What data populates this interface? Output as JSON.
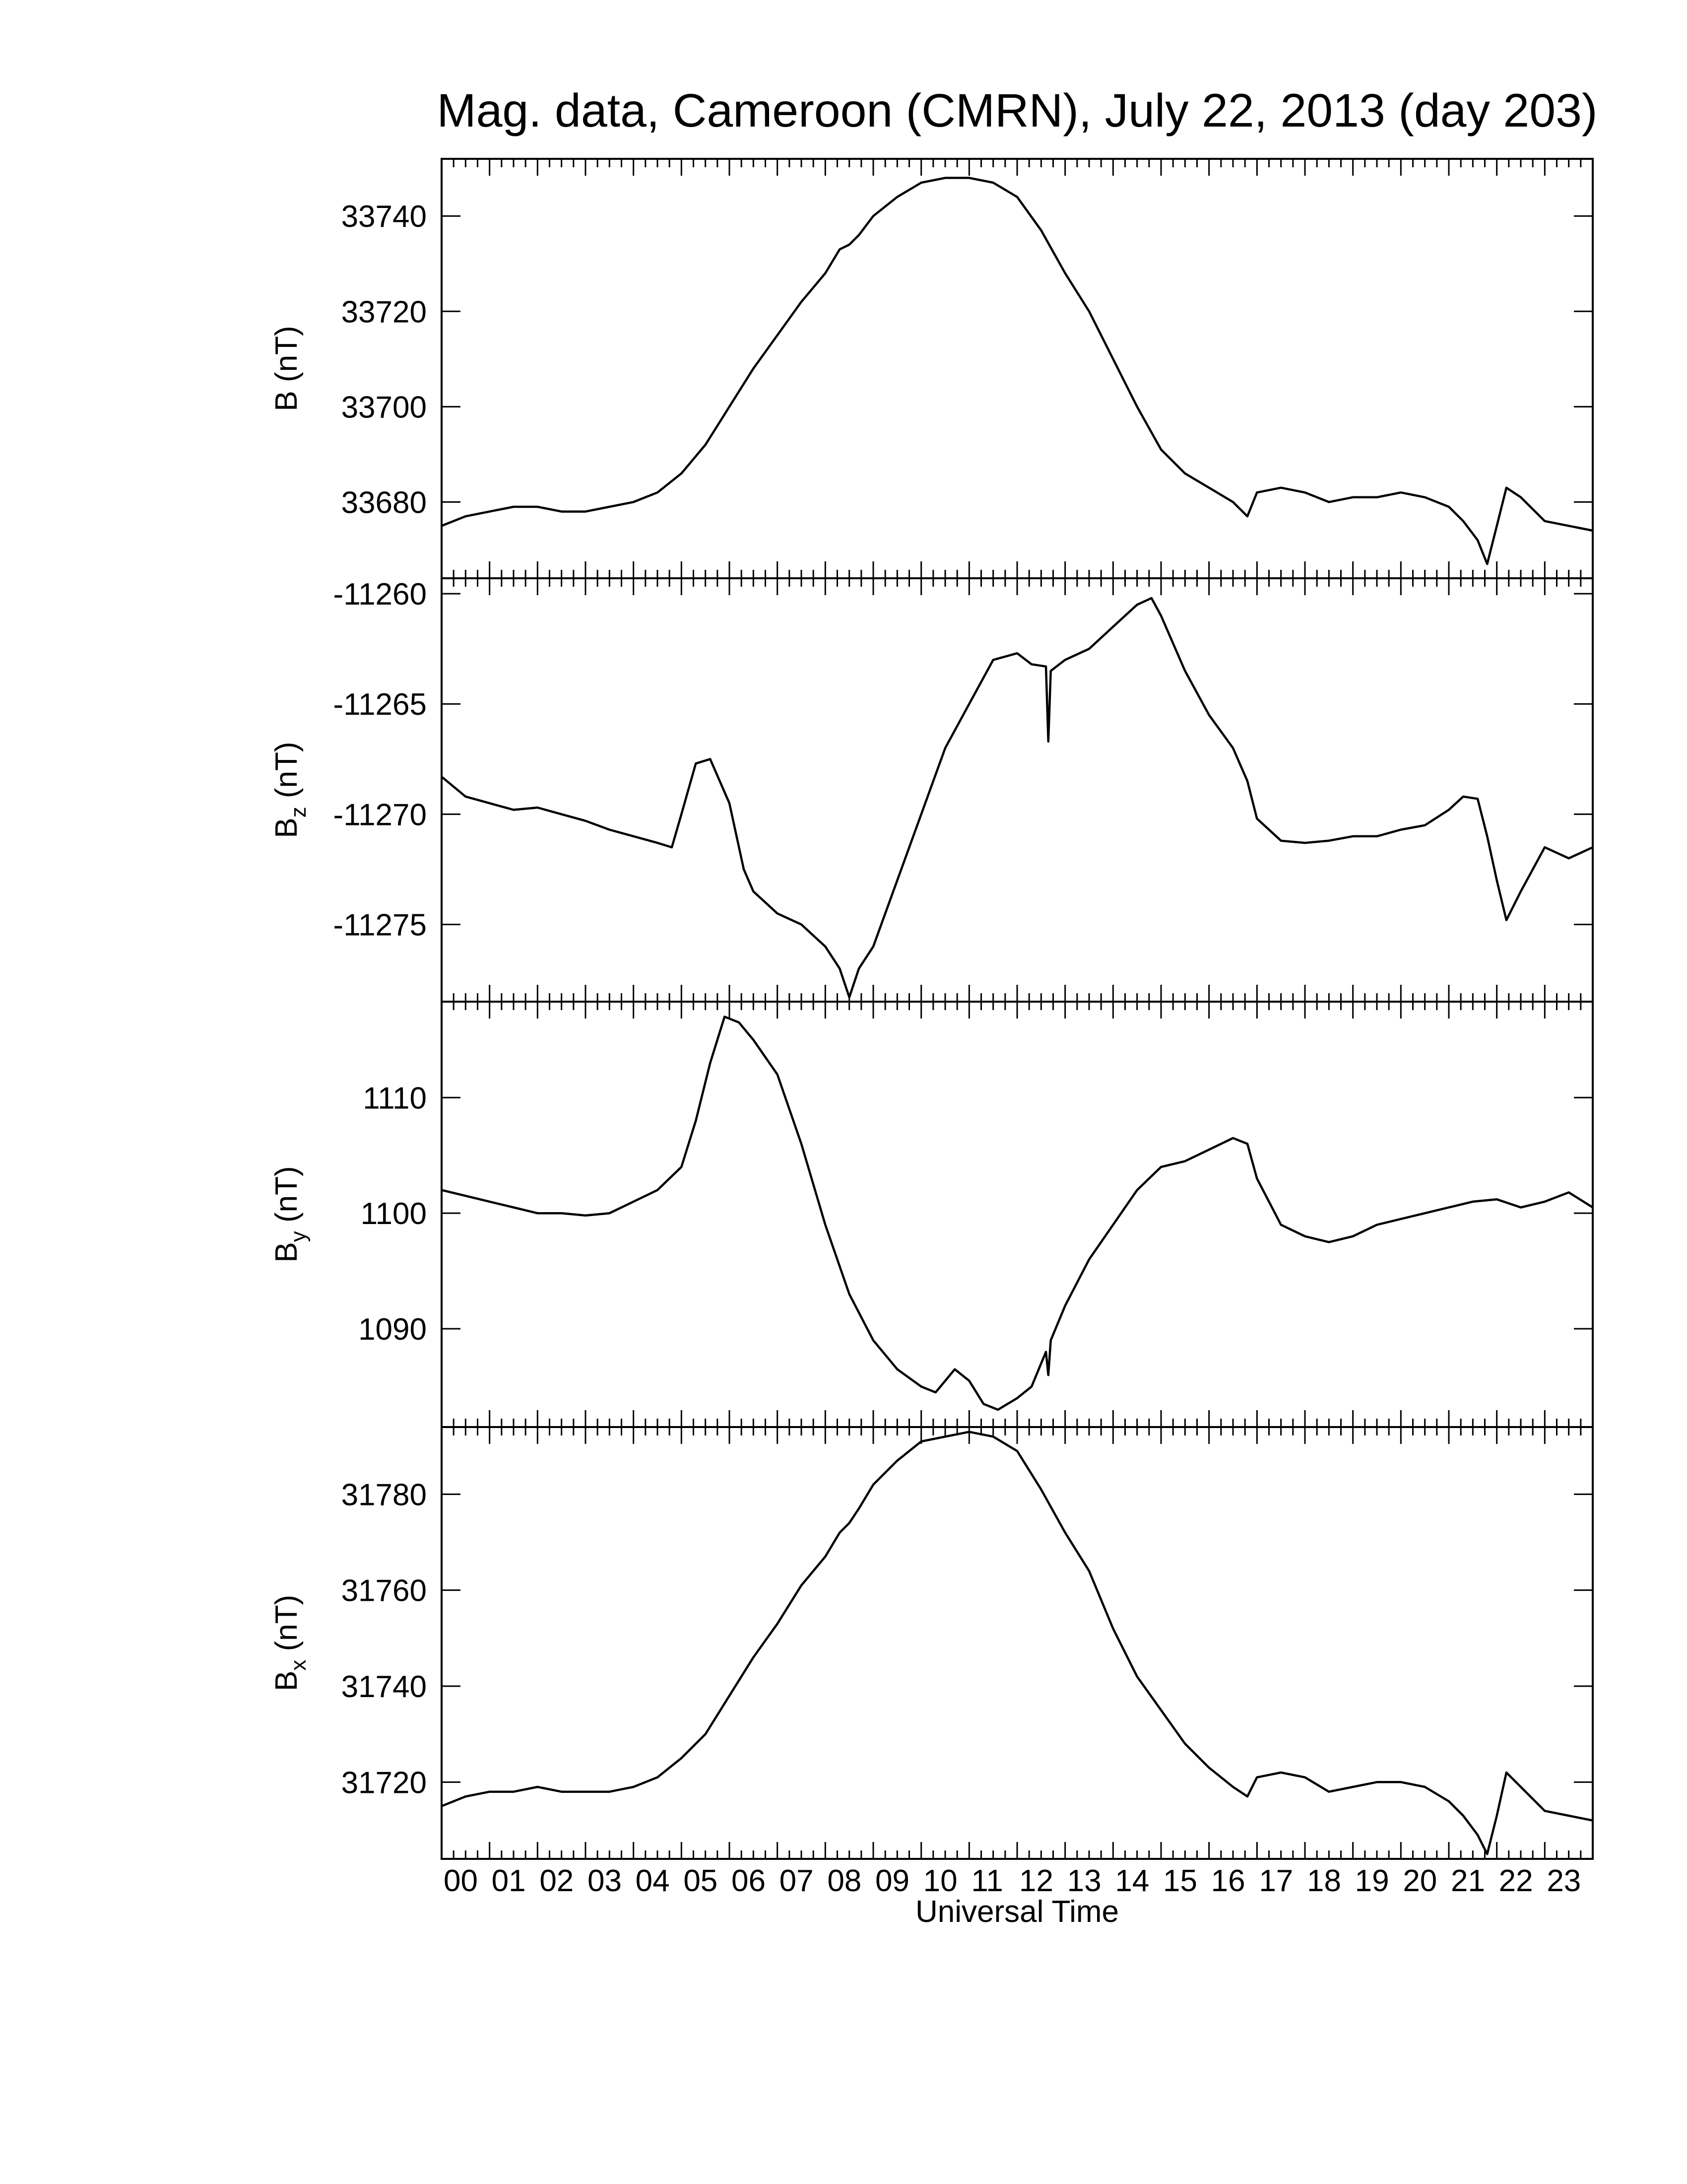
{
  "title": "Mag. data, Cameroon (CMRN), July 22, 2013 (day 203)",
  "x_axis": {
    "label": "Universal Time",
    "tick_labels": [
      "00",
      "01",
      "02",
      "03",
      "04",
      "05",
      "06",
      "07",
      "08",
      "09",
      "10",
      "11",
      "12",
      "13",
      "14",
      "15",
      "16",
      "17",
      "18",
      "19",
      "20",
      "21",
      "22",
      "23"
    ]
  },
  "chart_data": [
    {
      "type": "line",
      "ylabel": "B (nT)",
      "ylim": [
        33664,
        33752
      ],
      "yticks": [
        33680,
        33700,
        33720,
        33740
      ],
      "series": [
        {
          "x": [
            0,
            0.5,
            1,
            1.5,
            2,
            2.5,
            3,
            3.5,
            4,
            4.5,
            5,
            5.5,
            6,
            6.5,
            7,
            7.5,
            8,
            8.3,
            8.5,
            8.7,
            9,
            9.5,
            10,
            10.5,
            11,
            11.5,
            12,
            12.5,
            13,
            13.5,
            14,
            14.5,
            15,
            15.5,
            16,
            16.5,
            16.8,
            17,
            17.5,
            18,
            18.5,
            19,
            19.5,
            20,
            20.5,
            21,
            21.3,
            21.6,
            21.8,
            22,
            22.2,
            22.5,
            23,
            23.5,
            24
          ],
          "y": [
            33675,
            33677,
            33678,
            33679,
            33679,
            33678,
            33678,
            33679,
            33680,
            33682,
            33686,
            33692,
            33700,
            33708,
            33715,
            33722,
            33728,
            33733,
            33734,
            33736,
            33740,
            33744,
            33747,
            33748,
            33748,
            33747,
            33744,
            33737,
            33728,
            33720,
            33710,
            33700,
            33691,
            33686,
            33683,
            33680,
            33677,
            33682,
            33683,
            33682,
            33680,
            33681,
            33681,
            33682,
            33681,
            33679,
            33676,
            33672,
            33667,
            33675,
            33683,
            33681,
            33676,
            33675,
            33674
          ]
        }
      ]
    },
    {
      "type": "line",
      "ylabel": "Bz (nT)",
      "ylim": [
        -11278.5,
        -11259.3
      ],
      "yticks": [
        -11260,
        -11265,
        -11270,
        -11275
      ],
      "series": [
        {
          "x": [
            0,
            0.5,
            1,
            1.5,
            2,
            2.5,
            3,
            3.5,
            4,
            4.5,
            4.8,
            5,
            5.3,
            5.6,
            6,
            6.3,
            6.5,
            7,
            7.5,
            8,
            8.3,
            8.5,
            8.7,
            9,
            9.5,
            10,
            10.5,
            11,
            11.5,
            12,
            12.3,
            12.6,
            12.65,
            12.7,
            13,
            13.5,
            14,
            14.5,
            14.8,
            15,
            15.5,
            16,
            16.5,
            16.8,
            17,
            17.5,
            18,
            18.5,
            19,
            19.5,
            20,
            20.5,
            21,
            21.3,
            21.6,
            21.8,
            22,
            22.2,
            22.5,
            23,
            23.5,
            24
          ],
          "y": [
            -11268.3,
            -11269.2,
            -11269.5,
            -11269.8,
            -11269.7,
            -11270,
            -11270.3,
            -11270.7,
            -11271,
            -11271.3,
            -11271.5,
            -11270,
            -11267.7,
            -11267.5,
            -11269.5,
            -11272.5,
            -11273.5,
            -11274.5,
            -11275,
            -11276,
            -11277,
            -11278.3,
            -11277,
            -11276,
            -11273,
            -11270,
            -11267,
            -11265,
            -11263,
            -11262.7,
            -11263.2,
            -11263.3,
            -11266.7,
            -11263.5,
            -11263,
            -11262.5,
            -11261.5,
            -11260.5,
            -11260.2,
            -11261,
            -11263.5,
            -11265.5,
            -11267,
            -11268.5,
            -11270.2,
            -11271.2,
            -11271.3,
            -11271.2,
            -11271,
            -11271,
            -11270.7,
            -11270.5,
            -11269.8,
            -11269.2,
            -11269.3,
            -11271,
            -11273,
            -11274.8,
            -11273.5,
            -11271.5,
            -11272,
            -11271.5
          ]
        }
      ]
    },
    {
      "type": "line",
      "ylabel": "By (nT)",
      "ylim": [
        1081.5,
        1118.3
      ],
      "yticks": [
        1090,
        1100,
        1110
      ],
      "series": [
        {
          "x": [
            0,
            0.5,
            1,
            1.5,
            2,
            2.5,
            3,
            3.5,
            4,
            4.5,
            5,
            5.3,
            5.6,
            5.9,
            6.2,
            6.5,
            7,
            7.5,
            8,
            8.5,
            9,
            9.5,
            10,
            10.3,
            10.7,
            11,
            11.3,
            11.6,
            12,
            12.3,
            12.6,
            12.65,
            12.7,
            13,
            13.5,
            14,
            14.5,
            15,
            15.5,
            16,
            16.5,
            16.8,
            17,
            17.5,
            18,
            18.5,
            19,
            19.5,
            20,
            20.5,
            21,
            21.5,
            22,
            22.5,
            23,
            23.5,
            24
          ],
          "y": [
            1102,
            1101.5,
            1101,
            1100.5,
            1100,
            1100,
            1099.8,
            1100,
            1101,
            1102,
            1104,
            1108,
            1113,
            1117,
            1116.5,
            1115,
            1112,
            1106,
            1099,
            1093,
            1089,
            1086.5,
            1085,
            1084.5,
            1086.5,
            1085.5,
            1083.5,
            1083,
            1084,
            1085,
            1088,
            1086,
            1089,
            1092,
            1096,
            1099,
            1102,
            1104,
            1104.5,
            1105.5,
            1106.5,
            1106,
            1103,
            1099,
            1098,
            1097.5,
            1098,
            1099,
            1099.5,
            1100,
            1100.5,
            1101,
            1101.2,
            1100.5,
            1101,
            1101.8,
            1100.5
          ]
        }
      ]
    },
    {
      "type": "line",
      "ylabel": "Bx (nT)",
      "ylim": [
        31704,
        31794
      ],
      "yticks": [
        31720,
        31740,
        31760,
        31780
      ],
      "series": [
        {
          "x": [
            0,
            0.5,
            1,
            1.5,
            2,
            2.5,
            3,
            3.5,
            4,
            4.5,
            5,
            5.5,
            6,
            6.5,
            7,
            7.5,
            8,
            8.3,
            8.5,
            8.7,
            9,
            9.5,
            10,
            10.5,
            11,
            11.5,
            12,
            12.5,
            13,
            13.5,
            14,
            14.5,
            15,
            15.5,
            16,
            16.5,
            16.8,
            17,
            17.5,
            18,
            18.5,
            19,
            19.5,
            20,
            20.5,
            21,
            21.3,
            21.6,
            21.8,
            22,
            22.2,
            22.5,
            23,
            23.5,
            24
          ],
          "y": [
            31715,
            31717,
            31718,
            31718,
            31719,
            31718,
            31718,
            31718,
            31719,
            31721,
            31725,
            31730,
            31738,
            31746,
            31753,
            31761,
            31767,
            31772,
            31774,
            31777,
            31782,
            31787,
            31791,
            31792,
            31793,
            31792,
            31789,
            31781,
            31772,
            31764,
            31752,
            31742,
            31735,
            31728,
            31723,
            31719,
            31717,
            31721,
            31722,
            31721,
            31718,
            31719,
            31720,
            31720,
            31719,
            31716,
            31713,
            31709,
            31705,
            31713,
            31722,
            31719,
            31714,
            31713,
            31712
          ]
        }
      ]
    }
  ]
}
